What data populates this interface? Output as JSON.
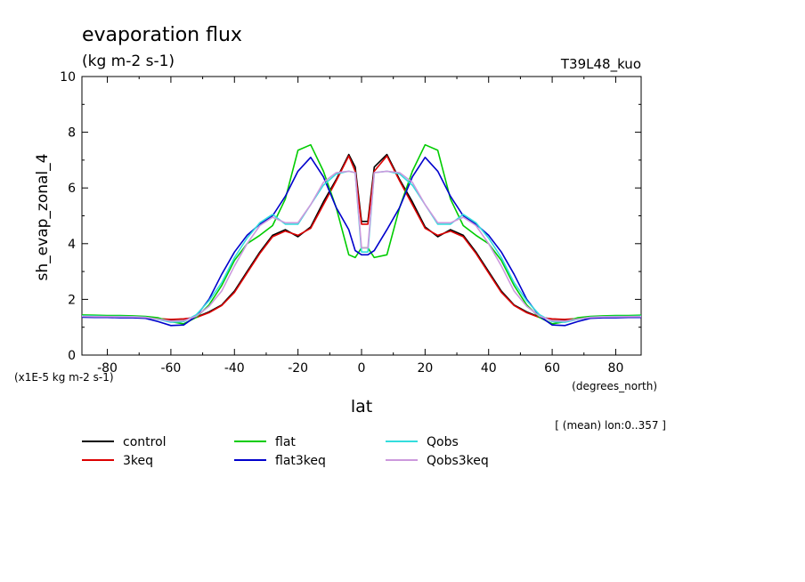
{
  "chart_data": {
    "type": "line",
    "title": "evaporation flux",
    "subtitle": "(kg m-2 s-1)",
    "run_label": "T39L48_kuo",
    "ylabel": "sh_evap_zonal_4",
    "xlabel": "lat",
    "x_units": "(degrees_north)",
    "y_scale_label": "(x1E-5 kg m-2 s-1)",
    "footnote": "[ (mean) lon:0..357 ]",
    "xlim": [
      -88,
      88
    ],
    "ylim": [
      0,
      10
    ],
    "x_ticks": [
      -80,
      -60,
      -40,
      -20,
      0,
      20,
      40,
      60,
      80
    ],
    "x_tick_labels": [
      "-80",
      "-60",
      "-40",
      "-20",
      "0",
      "20",
      "40",
      "60",
      "80"
    ],
    "y_ticks": [
      0,
      2,
      4,
      6,
      8,
      10
    ],
    "y_tick_labels": [
      "0",
      "2",
      "4",
      "6",
      "8",
      "10"
    ],
    "x": [
      -88,
      -84,
      -80,
      -76,
      -72,
      -68,
      -64,
      -60,
      -56,
      -52,
      -48,
      -44,
      -40,
      -36,
      -32,
      -28,
      -24,
      -20,
      -16,
      -12,
      -8,
      -4,
      -2,
      0,
      2,
      4,
      8,
      12,
      16,
      20,
      24,
      28,
      32,
      36,
      40,
      44,
      48,
      52,
      56,
      60,
      64,
      68,
      72,
      76,
      80,
      84,
      88
    ],
    "series": [
      {
        "name": "control",
        "color": "#000000",
        "values": [
          1.4,
          1.39,
          1.38,
          1.37,
          1.36,
          1.34,
          1.3,
          1.27,
          1.29,
          1.36,
          1.55,
          1.8,
          2.3,
          3.0,
          3.7,
          4.3,
          4.5,
          4.25,
          4.6,
          5.5,
          6.3,
          7.2,
          6.75,
          4.8,
          4.8,
          6.75,
          7.2,
          6.3,
          5.5,
          4.6,
          4.25,
          4.5,
          4.3,
          3.7,
          3.0,
          2.3,
          1.8,
          1.55,
          1.36,
          1.29,
          1.27,
          1.3,
          1.34,
          1.36,
          1.37,
          1.38,
          1.39
        ]
      },
      {
        "name": "3keq",
        "color": "#dd0000",
        "values": [
          1.38,
          1.38,
          1.37,
          1.37,
          1.36,
          1.34,
          1.31,
          1.28,
          1.3,
          1.35,
          1.52,
          1.78,
          2.25,
          2.95,
          3.65,
          4.25,
          4.45,
          4.3,
          4.55,
          5.4,
          6.25,
          7.15,
          6.6,
          4.7,
          4.7,
          6.6,
          7.15,
          6.25,
          5.4,
          4.55,
          4.3,
          4.45,
          4.25,
          3.65,
          2.95,
          2.25,
          1.78,
          1.52,
          1.35,
          1.3,
          1.28,
          1.31,
          1.34,
          1.36,
          1.37,
          1.37,
          1.38
        ]
      },
      {
        "name": "flat",
        "color": "#00cc00",
        "values": [
          1.44,
          1.43,
          1.42,
          1.42,
          1.41,
          1.39,
          1.34,
          1.2,
          1.12,
          1.35,
          1.8,
          2.5,
          3.4,
          4.0,
          4.3,
          4.65,
          5.6,
          7.35,
          7.55,
          6.6,
          5.3,
          3.6,
          3.5,
          3.85,
          3.85,
          3.5,
          3.6,
          5.3,
          6.6,
          7.55,
          7.35,
          5.6,
          4.65,
          4.3,
          4.0,
          3.4,
          2.5,
          1.8,
          1.35,
          1.12,
          1.2,
          1.34,
          1.39,
          1.41,
          1.42,
          1.42,
          1.43
        ]
      },
      {
        "name": "flat3keq",
        "color": "#0000cc",
        "values": [
          1.36,
          1.35,
          1.35,
          1.34,
          1.34,
          1.32,
          1.2,
          1.06,
          1.08,
          1.4,
          2.0,
          2.9,
          3.7,
          4.3,
          4.7,
          5.0,
          5.7,
          6.6,
          7.1,
          6.4,
          5.3,
          4.5,
          3.75,
          3.6,
          3.6,
          3.75,
          4.5,
          5.3,
          6.4,
          7.1,
          6.6,
          5.7,
          5.0,
          4.7,
          4.3,
          3.7,
          2.9,
          2.0,
          1.4,
          1.08,
          1.06,
          1.2,
          1.32,
          1.34,
          1.34,
          1.35,
          1.35
        ]
      },
      {
        "name": "Qobs",
        "color": "#33dddd",
        "values": [
          1.41,
          1.4,
          1.39,
          1.39,
          1.38,
          1.36,
          1.28,
          1.18,
          1.2,
          1.45,
          1.95,
          2.6,
          3.5,
          4.2,
          4.75,
          5.05,
          4.7,
          4.7,
          5.4,
          6.1,
          6.5,
          6.6,
          6.55,
          3.7,
          3.7,
          6.55,
          6.6,
          6.5,
          6.1,
          5.4,
          4.7,
          4.7,
          5.05,
          4.75,
          4.2,
          3.5,
          2.6,
          1.95,
          1.45,
          1.2,
          1.18,
          1.28,
          1.36,
          1.38,
          1.39,
          1.39,
          1.4
        ]
      },
      {
        "name": "Qobs3keq",
        "color": "#cc99dd",
        "values": [
          1.39,
          1.38,
          1.38,
          1.37,
          1.37,
          1.35,
          1.29,
          1.22,
          1.23,
          1.4,
          1.75,
          2.3,
          3.2,
          4.0,
          4.65,
          4.95,
          4.75,
          4.75,
          5.4,
          6.2,
          6.55,
          6.6,
          6.55,
          3.85,
          3.85,
          6.55,
          6.6,
          6.55,
          6.2,
          5.4,
          4.75,
          4.75,
          4.95,
          4.65,
          4.0,
          3.2,
          2.3,
          1.75,
          1.4,
          1.23,
          1.22,
          1.29,
          1.35,
          1.37,
          1.37,
          1.38,
          1.38
        ]
      }
    ],
    "legend_placement": "bottom-left"
  }
}
